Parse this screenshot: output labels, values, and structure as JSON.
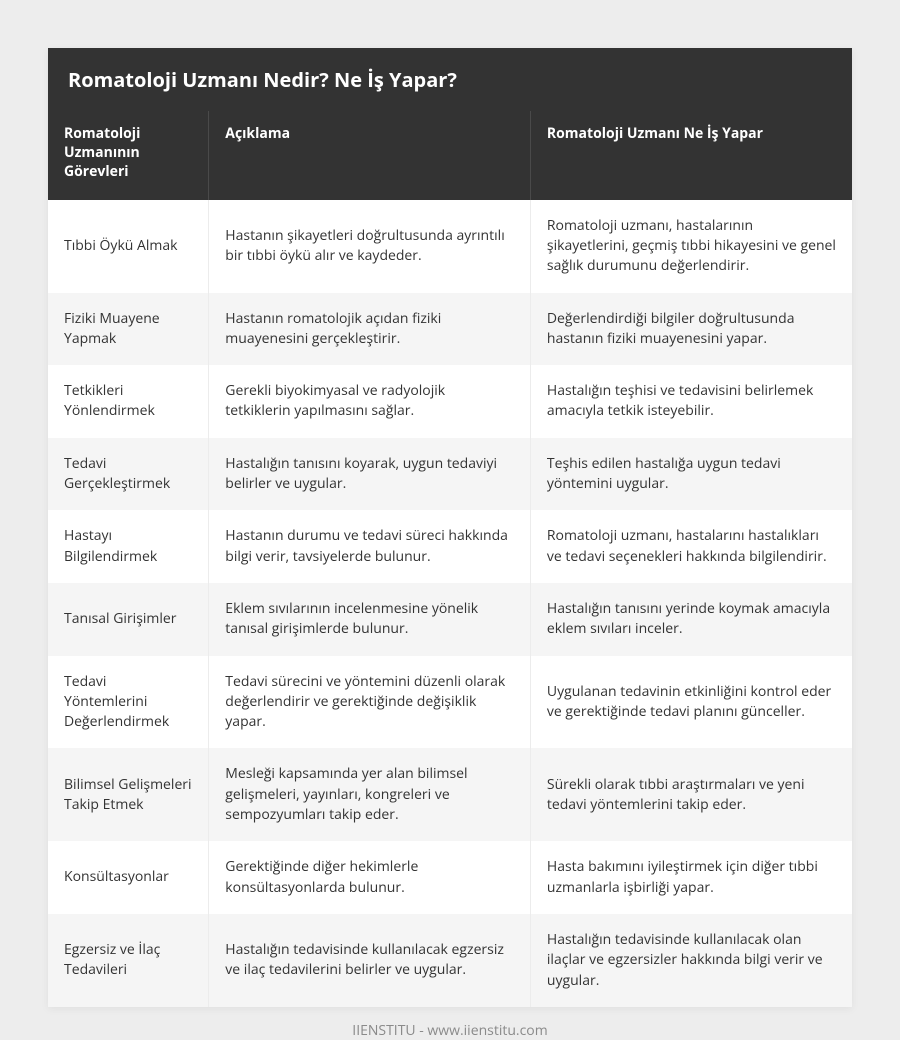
{
  "title": "Romatoloji Uzmanı Nedir? Ne İş Yapar?",
  "columns": [
    "Romatoloji Uzmanının Görevleri",
    "Açıklama",
    "Romatoloji Uzmanı Ne İş Yapar"
  ],
  "rows": [
    {
      "c0": "Tıbbi Öykü Almak",
      "c1": "Hastanın şikayetleri doğrultusunda ayrıntılı bir tıbbi öykü alır ve kaydeder.",
      "c2": "Romatoloji uzmanı, hastalarının şikayetlerini, geçmiş tıbbi hikayesini ve genel sağlık durumunu değerlendirir."
    },
    {
      "c0": "Fiziki Muayene Yapmak",
      "c1": "Hastanın romatolojik açıdan fiziki muayenesini gerçekleştirir.",
      "c2": "Değerlendirdiği bilgiler doğrultusunda hastanın fiziki muayenesini yapar."
    },
    {
      "c0": "Tetkikleri Yönlendirmek",
      "c1": "Gerekli biyokimyasal ve radyolojik tetkiklerin yapılmasını sağlar.",
      "c2": "Hastalığın teşhisi ve tedavisini belirlemek amacıyla tetkik isteyebilir."
    },
    {
      "c0": "Tedavi Gerçekleştirmek",
      "c1": "Hastalığın tanısını koyarak, uygun tedaviyi belirler ve uygular.",
      "c2": "Teşhis edilen hastalığa uygun tedavi yöntemini uygular."
    },
    {
      "c0": "Hastayı Bilgilendirmek",
      "c1": "Hastanın durumu ve tedavi süreci hakkında bilgi verir, tavsiyelerde bulunur.",
      "c2": "Romatoloji uzmanı, hastalarını hastalıkları ve tedavi seçenekleri hakkında bilgilendirir."
    },
    {
      "c0": "Tanısal Girişimler",
      "c1": "Eklem sıvılarının incelenmesine yönelik tanısal girişimlerde bulunur.",
      "c2": "Hastalığın tanısını yerinde koymak amacıyla eklem sıvıları inceler."
    },
    {
      "c0": "Tedavi Yöntemlerini Değerlendirmek",
      "c1": "Tedavi sürecini ve yöntemini düzenli olarak değerlendirir ve gerektiğinde değişiklik yapar.",
      "c2": "Uygulanan tedavinin etkinliğini kontrol eder ve gerektiğinde tedavi planını günceller."
    },
    {
      "c0": "Bilimsel Gelişmeleri Takip Etmek",
      "c1": "Mesleği kapsamında yer alan bilimsel gelişmeleri, yayınları, kongreleri ve sempozyumları takip eder.",
      "c2": "Sürekli olarak tıbbi araştırmaları ve yeni tedavi yöntemlerini takip eder."
    },
    {
      "c0": "Konsültasyonlar",
      "c1": "Gerektiğinde diğer hekimlerle konsültasyonlarda bulunur.",
      "c2": "Hasta bakımını iyileştirmek için diğer tıbbi uzmanlarla işbirliği yapar."
    },
    {
      "c0": "Egzersiz ve İlaç Tedavileri",
      "c1": "Hastalığın tedavisinde kullanılacak egzersiz ve ilaç tedavilerini belirler ve uygular.",
      "c2": "Hastalığın tedavisinde kullanılacak olan ilaçlar ve egzersizler hakkında bilgi verir ve uygular."
    }
  ],
  "footer": "IIENSTITU - www.iienstitu.com"
}
